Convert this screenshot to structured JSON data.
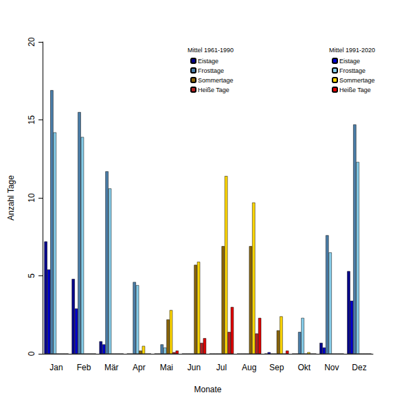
{
  "chart_data": {
    "type": "bar",
    "xlabel": "Monate",
    "ylabel": "Anzahl Tage",
    "categories": [
      "Jan",
      "Feb",
      "Mär",
      "Apr",
      "Mai",
      "Jun",
      "Jul",
      "Aug",
      "Sep",
      "Okt",
      "Nov",
      "Dez"
    ],
    "ylim": [
      0,
      20
    ],
    "yticks": [
      0,
      5,
      10,
      15,
      20
    ],
    "grid": false,
    "series": [
      {
        "group": "Mittel 1961-1990",
        "name": "Eistage",
        "color": "#00008B",
        "values": [
          7.2,
          4.8,
          0.8,
          0,
          0,
          0,
          0,
          0,
          0,
          0,
          0.7,
          5.3
        ]
      },
      {
        "group": "Mittel 1991-2020",
        "name": "Eistage",
        "color": "#0000CD",
        "values": [
          5.4,
          2.9,
          0.6,
          0,
          0,
          0,
          0,
          0,
          0.1,
          0,
          0.4,
          3.4
        ]
      },
      {
        "group": "Mittel 1961-1990",
        "name": "Frosttage",
        "color": "#4A7DA8",
        "values": [
          16.9,
          15.5,
          11.7,
          4.6,
          0.6,
          0,
          0,
          0,
          0,
          1.4,
          7.6,
          14.7
        ]
      },
      {
        "group": "Mittel 1991-2020",
        "name": "Frosttage",
        "color": "#87CEEB",
        "values": [
          14.2,
          13.9,
          10.6,
          4.4,
          0.4,
          0,
          0,
          0,
          0,
          2.3,
          6.5,
          12.3
        ]
      },
      {
        "group": "Mittel 1961-1990",
        "name": "Sommertage",
        "color": "#8B6508",
        "values": [
          0,
          0,
          0,
          0.2,
          2.2,
          5.7,
          6.9,
          6.9,
          1.5,
          0,
          0,
          0
        ]
      },
      {
        "group": "Mittel 1991-2020",
        "name": "Sommertage",
        "color": "#FFD700",
        "values": [
          0,
          0,
          0,
          0.5,
          2.8,
          5.9,
          11.4,
          9.7,
          2.4,
          0.1,
          0,
          0
        ]
      },
      {
        "group": "Mittel 1961-1990",
        "name": "Heiße Tage",
        "color": "#B22222",
        "values": [
          0,
          0,
          0,
          0,
          0.1,
          0.7,
          1.4,
          1.3,
          0,
          0,
          0,
          0
        ]
      },
      {
        "group": "Mittel 1991-2020",
        "name": "Heiße Tage",
        "color": "#E00000",
        "values": [
          0,
          0,
          0,
          0,
          0.2,
          1.0,
          3.0,
          2.3,
          0.2,
          0,
          0,
          0
        ]
      }
    ]
  }
}
